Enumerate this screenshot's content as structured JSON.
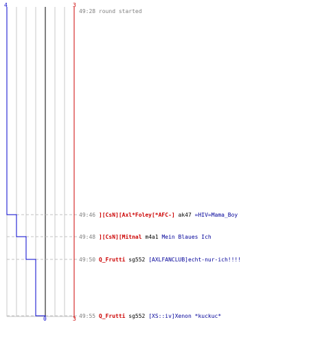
{
  "score": {
    "blue_start": "4",
    "red_start": "3",
    "blue_end": "0",
    "red_end": "3",
    "blue_color": "#0000cc",
    "red_color": "#cc0000"
  },
  "round_start": {
    "time": "49:28",
    "text": "round started"
  },
  "events": [
    {
      "time": "49:46",
      "killer": "][CsN][Axl*Foley[*AFC-]",
      "weapon": "ak47",
      "victim": "=HIV=Mama_Boy",
      "blue_after": 3,
      "red_after": 3
    },
    {
      "time": "49:48",
      "killer": "][CsN][Mitnal",
      "weapon": "m4a1",
      "victim": "Mein Blaues Ich",
      "blue_after": 2,
      "red_after": 3
    },
    {
      "time": "49:50",
      "killer": "Q_Frutti",
      "weapon": "sg552",
      "victim": "[AXLFANCLUB]echt-nur-ich!!!!",
      "blue_after": 1,
      "red_after": 3
    },
    {
      "time": "49:55",
      "killer": "Q_Frutti",
      "weapon": "sg552",
      "victim": "[XS::iv]Xenon *kuckuc*",
      "blue_after": 0,
      "red_after": 3
    }
  ]
}
